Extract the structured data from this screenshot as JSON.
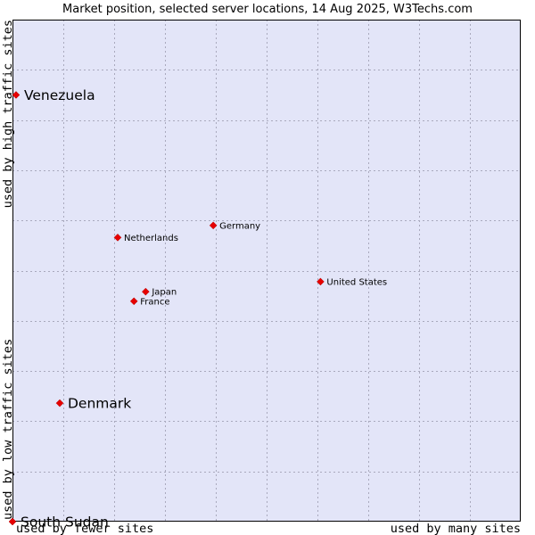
{
  "chart_data": {
    "type": "scatter",
    "title": "Market position, selected server locations, 14 Aug 2025, W3Techs.com",
    "x_axis": {
      "low_label": "used by fewer sites",
      "high_label": "used by many sites",
      "range": [
        0,
        10
      ]
    },
    "y_axis": {
      "low_label": "used by low traffic sites",
      "high_label": "used by high traffic sites",
      "range": [
        0,
        10
      ]
    },
    "grid": true,
    "points": [
      {
        "label": "Venezuela",
        "x": 0.07,
        "y": 8.5,
        "emphasis": true
      },
      {
        "label": "Germany",
        "x": 3.95,
        "y": 5.9,
        "emphasis": false
      },
      {
        "label": "Netherlands",
        "x": 2.07,
        "y": 5.66,
        "emphasis": false
      },
      {
        "label": "United States",
        "x": 6.06,
        "y": 4.78,
        "emphasis": false
      },
      {
        "label": "Japan",
        "x": 2.62,
        "y": 4.58,
        "emphasis": false
      },
      {
        "label": "France",
        "x": 2.39,
        "y": 4.39,
        "emphasis": false
      },
      {
        "label": "Denmark",
        "x": 0.93,
        "y": 2.36,
        "emphasis": true
      },
      {
        "label": "South Sudan",
        "x": 0.0,
        "y": 0.0,
        "emphasis": true
      }
    ],
    "colors": {
      "plot_background": "#e3e5f8",
      "grid": "#a9a9bd",
      "marker": "#e60000",
      "border": "#000000"
    }
  }
}
